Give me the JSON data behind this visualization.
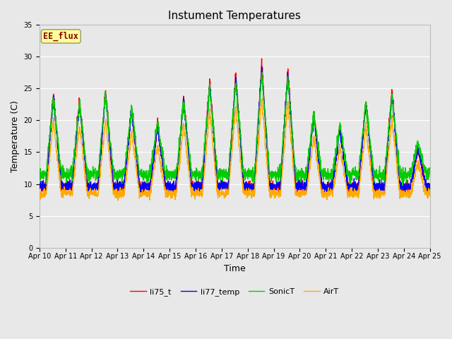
{
  "title": "Instument Temperatures",
  "xlabel": "Time",
  "ylabel": "Temperature (C)",
  "ylim": [
    0,
    35
  ],
  "yticks": [
    0,
    5,
    10,
    15,
    20,
    25,
    30,
    35
  ],
  "xtick_labels": [
    "Apr 10",
    "Apr 11",
    "Apr 12",
    "Apr 13",
    "Apr 14",
    "Apr 15",
    "Apr 16",
    "Apr 17",
    "Apr 18",
    "Apr 19",
    "Apr 20",
    "Apr 21",
    "Apr 22",
    "Apr 23",
    "Apr 24",
    "Apr 25"
  ],
  "series_colors": [
    "#ff0000",
    "#0000ff",
    "#00cc00",
    "#ffaa00"
  ],
  "series_names": [
    "li75_t",
    "li77_temp",
    "SonicT",
    "AirT"
  ],
  "fig_bg_color": "#e8e8e8",
  "plot_bg_color": "#e8e8e8",
  "ee_flux_label": "EE_flux",
  "ee_flux_color": "#880000",
  "ee_flux_bg": "#ffff99",
  "ee_flux_edge": "#999966",
  "n_days": 15,
  "pts_per_day": 144,
  "title_fontsize": 11,
  "axis_label_fontsize": 9,
  "tick_fontsize": 7,
  "legend_fontsize": 8,
  "line_width": 1.0,
  "grid_color": "#ffffff",
  "grid_lw": 0.8
}
